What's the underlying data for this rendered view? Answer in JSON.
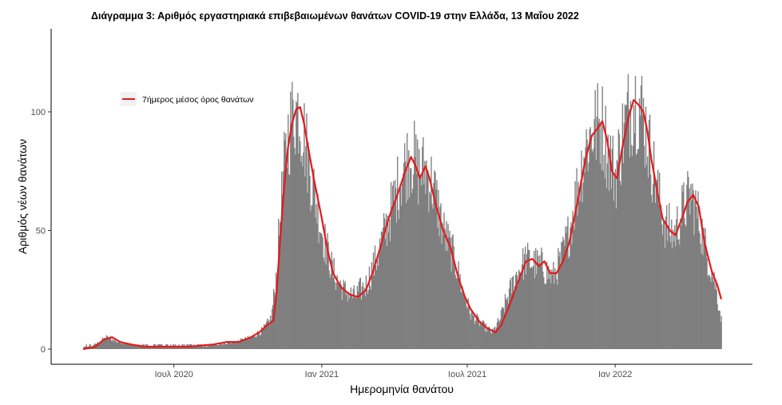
{
  "chart_data": {
    "type": "bar",
    "title": "Διάγραμμα 3: Αριθμός εργαστηριακά επιβεβαιωμένων θανάτων COVID-19 στην Ελλάδα, 13 Μαΐου 2022",
    "xlabel": "Ημερομηνία θανάτου",
    "ylabel": "Αριθμός νέων θανάτων",
    "x_range": [
      "2020-03-10",
      "2022-05-13"
    ],
    "ylim": [
      0,
      130
    ],
    "y_ticks": [
      0,
      50,
      100
    ],
    "x_ticks": [
      {
        "date": "2020-07-01",
        "label": "Ιουλ 2020"
      },
      {
        "date": "2021-01-01",
        "label": "Ιαν 2021"
      },
      {
        "date": "2021-07-01",
        "label": "Ιουλ 2021"
      },
      {
        "date": "2022-01-01",
        "label": "Ιαν 2022"
      }
    ],
    "grid": false,
    "legend": {
      "position": "top-left",
      "entries": [
        {
          "label": "7ήμερος μέσος όρος θανάτων",
          "color": "#e41a1c"
        }
      ]
    },
    "series": [
      {
        "kind": "bar",
        "color": "#7f7f7f",
        "note_values": "daily new deaths (estimated profile)",
        "points": [
          {
            "x": "2020-03-10",
            "y": 0
          },
          {
            "x": "2020-03-25",
            "y": 2
          },
          {
            "x": "2020-04-08",
            "y": 5
          },
          {
            "x": "2020-04-22",
            "y": 3
          },
          {
            "x": "2020-05-10",
            "y": 2
          },
          {
            "x": "2020-06-01",
            "y": 1
          },
          {
            "x": "2020-07-01",
            "y": 1
          },
          {
            "x": "2020-08-01",
            "y": 1
          },
          {
            "x": "2020-08-25",
            "y": 2
          },
          {
            "x": "2020-09-15",
            "y": 3
          },
          {
            "x": "2020-10-05",
            "y": 5
          },
          {
            "x": "2020-10-20",
            "y": 8
          },
          {
            "x": "2020-10-30",
            "y": 13
          },
          {
            "x": "2020-11-05",
            "y": 30
          },
          {
            "x": "2020-11-10",
            "y": 55
          },
          {
            "x": "2020-11-15",
            "y": 75
          },
          {
            "x": "2020-11-20",
            "y": 90
          },
          {
            "x": "2020-11-27",
            "y": 100
          },
          {
            "x": "2020-12-03",
            "y": 101
          },
          {
            "x": "2020-12-10",
            "y": 90
          },
          {
            "x": "2020-12-20",
            "y": 70
          },
          {
            "x": "2021-01-01",
            "y": 50
          },
          {
            "x": "2021-01-15",
            "y": 32
          },
          {
            "x": "2021-01-28",
            "y": 25
          },
          {
            "x": "2021-02-10",
            "y": 22
          },
          {
            "x": "2021-02-25",
            "y": 27
          },
          {
            "x": "2021-03-10",
            "y": 38
          },
          {
            "x": "2021-03-25",
            "y": 55
          },
          {
            "x": "2021-04-05",
            "y": 68
          },
          {
            "x": "2021-04-15",
            "y": 78
          },
          {
            "x": "2021-04-22",
            "y": 82
          },
          {
            "x": "2021-05-01",
            "y": 75
          },
          {
            "x": "2021-05-10",
            "y": 76
          },
          {
            "x": "2021-05-20",
            "y": 68
          },
          {
            "x": "2021-06-01",
            "y": 50
          },
          {
            "x": "2021-06-15",
            "y": 38
          },
          {
            "x": "2021-06-25",
            "y": 25
          },
          {
            "x": "2021-07-05",
            "y": 15
          },
          {
            "x": "2021-07-20",
            "y": 10
          },
          {
            "x": "2021-08-01",
            "y": 7
          },
          {
            "x": "2021-08-10",
            "y": 12
          },
          {
            "x": "2021-08-20",
            "y": 22
          },
          {
            "x": "2021-09-01",
            "y": 32
          },
          {
            "x": "2021-09-12",
            "y": 38
          },
          {
            "x": "2021-09-22",
            "y": 36
          },
          {
            "x": "2021-10-02",
            "y": 35
          },
          {
            "x": "2021-10-15",
            "y": 30
          },
          {
            "x": "2021-10-25",
            "y": 37
          },
          {
            "x": "2021-11-05",
            "y": 50
          },
          {
            "x": "2021-11-15",
            "y": 68
          },
          {
            "x": "2021-11-25",
            "y": 85
          },
          {
            "x": "2021-12-05",
            "y": 93
          },
          {
            "x": "2021-12-15",
            "y": 95
          },
          {
            "x": "2021-12-22",
            "y": 85
          },
          {
            "x": "2022-01-01",
            "y": 73
          },
          {
            "x": "2022-01-10",
            "y": 90
          },
          {
            "x": "2022-01-20",
            "y": 103
          },
          {
            "x": "2022-01-28",
            "y": 105
          },
          {
            "x": "2022-02-05",
            "y": 98
          },
          {
            "x": "2022-02-15",
            "y": 80
          },
          {
            "x": "2022-02-25",
            "y": 62
          },
          {
            "x": "2022-03-05",
            "y": 52
          },
          {
            "x": "2022-03-15",
            "y": 48
          },
          {
            "x": "2022-03-25",
            "y": 58
          },
          {
            "x": "2022-04-05",
            "y": 65
          },
          {
            "x": "2022-04-15",
            "y": 55
          },
          {
            "x": "2022-04-25",
            "y": 40
          },
          {
            "x": "2022-05-05",
            "y": 28
          },
          {
            "x": "2022-05-13",
            "y": 12
          }
        ]
      },
      {
        "kind": "line",
        "name": "7ήμερος μέσος όρος θανάτων",
        "color": "#e41a1c",
        "points": [
          {
            "x": "2020-03-10",
            "y": 0
          },
          {
            "x": "2020-03-25",
            "y": 1
          },
          {
            "x": "2020-04-05",
            "y": 4
          },
          {
            "x": "2020-04-15",
            "y": 5
          },
          {
            "x": "2020-04-25",
            "y": 3
          },
          {
            "x": "2020-05-08",
            "y": 2
          },
          {
            "x": "2020-05-25",
            "y": 1
          },
          {
            "x": "2020-06-20",
            "y": 1
          },
          {
            "x": "2020-07-20",
            "y": 1
          },
          {
            "x": "2020-08-20",
            "y": 2
          },
          {
            "x": "2020-09-05",
            "y": 3
          },
          {
            "x": "2020-09-20",
            "y": 3
          },
          {
            "x": "2020-10-05",
            "y": 5
          },
          {
            "x": "2020-10-15",
            "y": 7
          },
          {
            "x": "2020-10-25",
            "y": 10
          },
          {
            "x": "2020-11-02",
            "y": 12
          },
          {
            "x": "2020-11-06",
            "y": 25
          },
          {
            "x": "2020-11-10",
            "y": 45
          },
          {
            "x": "2020-11-15",
            "y": 68
          },
          {
            "x": "2020-11-20",
            "y": 85
          },
          {
            "x": "2020-11-25",
            "y": 95
          },
          {
            "x": "2020-11-30",
            "y": 101
          },
          {
            "x": "2020-12-05",
            "y": 102
          },
          {
            "x": "2020-12-10",
            "y": 95
          },
          {
            "x": "2020-12-15",
            "y": 85
          },
          {
            "x": "2020-12-22",
            "y": 72
          },
          {
            "x": "2021-01-01",
            "y": 55
          },
          {
            "x": "2021-01-08",
            "y": 42
          },
          {
            "x": "2021-01-15",
            "y": 32
          },
          {
            "x": "2021-01-25",
            "y": 26
          },
          {
            "x": "2021-02-05",
            "y": 23
          },
          {
            "x": "2021-02-15",
            "y": 22
          },
          {
            "x": "2021-02-25",
            "y": 25
          },
          {
            "x": "2021-03-05",
            "y": 32
          },
          {
            "x": "2021-03-15",
            "y": 43
          },
          {
            "x": "2021-03-25",
            "y": 55
          },
          {
            "x": "2021-04-05",
            "y": 65
          },
          {
            "x": "2021-04-15",
            "y": 75
          },
          {
            "x": "2021-04-22",
            "y": 81
          },
          {
            "x": "2021-04-28",
            "y": 77
          },
          {
            "x": "2021-05-03",
            "y": 72
          },
          {
            "x": "2021-05-10",
            "y": 77
          },
          {
            "x": "2021-05-15",
            "y": 72
          },
          {
            "x": "2021-05-22",
            "y": 62
          },
          {
            "x": "2021-06-01",
            "y": 50
          },
          {
            "x": "2021-06-10",
            "y": 43
          },
          {
            "x": "2021-06-20",
            "y": 30
          },
          {
            "x": "2021-06-28",
            "y": 22
          },
          {
            "x": "2021-07-05",
            "y": 17
          },
          {
            "x": "2021-07-15",
            "y": 12
          },
          {
            "x": "2021-07-25",
            "y": 9
          },
          {
            "x": "2021-08-05",
            "y": 7
          },
          {
            "x": "2021-08-12",
            "y": 10
          },
          {
            "x": "2021-08-22",
            "y": 18
          },
          {
            "x": "2021-09-02",
            "y": 28
          },
          {
            "x": "2021-09-12",
            "y": 37
          },
          {
            "x": "2021-09-20",
            "y": 38
          },
          {
            "x": "2021-09-28",
            "y": 35
          },
          {
            "x": "2021-10-05",
            "y": 37
          },
          {
            "x": "2021-10-12",
            "y": 32
          },
          {
            "x": "2021-10-20",
            "y": 32
          },
          {
            "x": "2021-10-28",
            "y": 37
          },
          {
            "x": "2021-11-05",
            "y": 45
          },
          {
            "x": "2021-11-15",
            "y": 62
          },
          {
            "x": "2021-11-25",
            "y": 80
          },
          {
            "x": "2021-12-03",
            "y": 90
          },
          {
            "x": "2021-12-10",
            "y": 93
          },
          {
            "x": "2021-12-16",
            "y": 96
          },
          {
            "x": "2021-12-22",
            "y": 88
          },
          {
            "x": "2021-12-28",
            "y": 75
          },
          {
            "x": "2022-01-03",
            "y": 72
          },
          {
            "x": "2022-01-10",
            "y": 85
          },
          {
            "x": "2022-01-17",
            "y": 97
          },
          {
            "x": "2022-01-24",
            "y": 105
          },
          {
            "x": "2022-01-30",
            "y": 103
          },
          {
            "x": "2022-02-05",
            "y": 100
          },
          {
            "x": "2022-02-10",
            "y": 92
          },
          {
            "x": "2022-02-15",
            "y": 80
          },
          {
            "x": "2022-02-22",
            "y": 67
          },
          {
            "x": "2022-03-01",
            "y": 55
          },
          {
            "x": "2022-03-10",
            "y": 50
          },
          {
            "x": "2022-03-17",
            "y": 48
          },
          {
            "x": "2022-03-25",
            "y": 55
          },
          {
            "x": "2022-04-01",
            "y": 62
          },
          {
            "x": "2022-04-08",
            "y": 65
          },
          {
            "x": "2022-04-15",
            "y": 60
          },
          {
            "x": "2022-04-22",
            "y": 45
          },
          {
            "x": "2022-05-01",
            "y": 33
          },
          {
            "x": "2022-05-08",
            "y": 27
          },
          {
            "x": "2022-05-13",
            "y": 21
          }
        ]
      }
    ]
  }
}
